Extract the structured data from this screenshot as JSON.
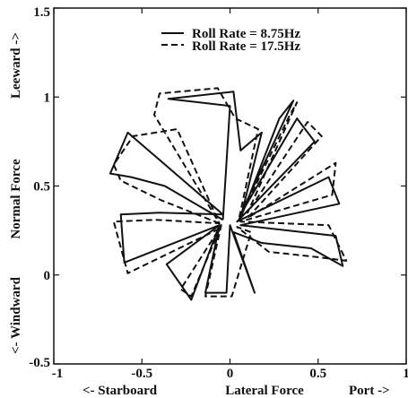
{
  "chart_data": {
    "type": "line",
    "title": "",
    "xlabel": "Lateral Force",
    "ylabel": "Normal Force",
    "x_direction_labels": {
      "left": "<- Starboard",
      "right": "Port ->"
    },
    "y_direction_labels": {
      "bottom": "<- Windward",
      "top": "Leeward ->"
    },
    "xlim": [
      -1,
      1
    ],
    "ylim": [
      -0.5,
      1.5
    ],
    "x_ticks": [
      -1,
      -0.5,
      0,
      0.5,
      1
    ],
    "x_tick_labels": [
      "-1",
      "-0.5",
      "0",
      "0.5",
      "1"
    ],
    "y_ticks": [
      -0.5,
      0,
      0.5,
      1,
      1.5
    ],
    "y_tick_labels": [
      "-0.5",
      "0",
      "0.5",
      "1",
      "1.5"
    ],
    "grid": false,
    "legend_position": "top-right",
    "series": [
      {
        "name": "Roll Rate = 8.75Hz",
        "style": "solid",
        "color": "#111111",
        "x": [
          -0.04,
          -0.37,
          -0.56,
          -0.68,
          -0.58,
          -0.04,
          -0.4,
          -0.62,
          -0.6,
          -0.06,
          -0.36,
          -0.22,
          -0.06,
          -0.14,
          -0.02,
          0.0,
          0.14,
          0.02,
          0.18,
          0.46,
          0.64,
          0.6,
          0.06,
          0.62,
          0.56,
          0.04,
          0.48,
          0.38,
          0.06,
          0.36,
          0.28,
          0.06,
          0.18,
          0.06,
          0.02,
          -0.35,
          0.0,
          -0.04
        ],
        "y": [
          0.31,
          0.5,
          0.55,
          0.57,
          0.8,
          0.34,
          0.35,
          0.34,
          0.07,
          0.28,
          0.06,
          -0.14,
          0.28,
          -0.1,
          -0.1,
          0.28,
          -0.1,
          0.24,
          0.18,
          0.15,
          0.05,
          0.22,
          0.28,
          0.4,
          0.55,
          0.3,
          0.75,
          0.88,
          0.34,
          0.98,
          0.88,
          0.32,
          0.8,
          0.7,
          1.03,
          0.99,
          0.95,
          0.31
        ]
      },
      {
        "name": "Roll Rate = 17.5Hz",
        "style": "dashed",
        "color": "#111111",
        "x": [
          -0.06,
          -0.39,
          -0.62,
          -0.66,
          -0.55,
          -0.3,
          -0.06,
          -0.42,
          -0.66,
          -0.58,
          -0.06,
          -0.28,
          -0.22,
          -0.05,
          -0.14,
          0.01,
          0.12,
          0.04,
          0.22,
          0.5,
          0.66,
          0.56,
          0.06,
          0.58,
          0.6,
          0.1,
          0.52,
          0.44,
          0.1,
          0.38,
          0.34,
          0.05,
          0.16,
          0.03,
          -0.07,
          -0.4,
          -0.43,
          -0.06
        ],
        "y": [
          0.29,
          0.42,
          0.53,
          0.62,
          0.78,
          0.82,
          0.29,
          0.31,
          0.3,
          0.01,
          0.26,
          -0.08,
          -0.12,
          0.28,
          -0.12,
          -0.12,
          0.24,
          0.27,
          0.13,
          0.1,
          0.08,
          0.28,
          0.3,
          0.45,
          0.63,
          0.32,
          0.78,
          0.86,
          0.35,
          0.97,
          0.9,
          0.31,
          0.82,
          0.88,
          1.05,
          1.02,
          0.9,
          0.29
        ]
      }
    ]
  }
}
